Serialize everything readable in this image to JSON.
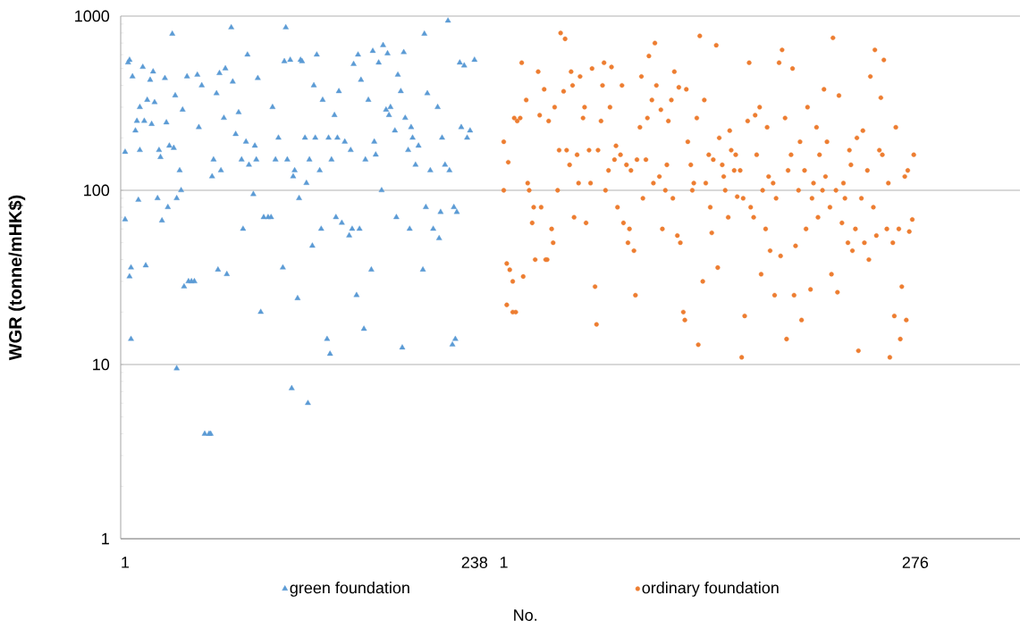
{
  "chart_data": {
    "type": "scatter",
    "xlabel": "No.",
    "ylabel": "WGR (tonne/mHK$)",
    "xlim": [
      -2,
      608
    ],
    "x2lim": [
      -255,
      346
    ],
    "ylim": [
      1,
      1000
    ],
    "log": true,
    "grid": "y",
    "legend": "bottom",
    "xticks": [
      1,
      238
    ],
    "x2ticks": [
      1,
      276
    ],
    "yticks": [
      1,
      10,
      100,
      1000
    ],
    "series": [
      {
        "name": "green foundation",
        "color": "#5b9bd5",
        "marker": "triangle",
        "x": [
          1,
          1,
          3,
          4,
          4,
          5,
          5,
          6,
          8,
          9,
          10,
          11,
          11,
          13,
          14,
          15,
          16,
          18,
          19,
          20,
          21,
          23,
          24,
          25,
          26,
          28,
          29,
          30,
          31,
          33,
          34,
          35,
          36,
          36,
          38,
          39,
          40,
          41,
          43,
          44,
          46,
          48,
          50,
          51,
          53,
          55,
          58,
          59,
          60,
          61,
          63,
          64,
          65,
          66,
          68,
          69,
          70,
          73,
          74,
          76,
          78,
          80,
          81,
          83,
          84,
          85,
          88,
          89,
          90,
          91,
          93,
          95,
          98,
          100,
          101,
          103,
          105,
          108,
          109,
          110,
          111,
          113,
          114,
          115,
          116,
          118,
          119,
          120,
          121,
          123,
          124,
          125,
          126,
          128,
          129,
          130,
          131,
          133,
          134,
          135,
          138,
          139,
          140,
          141,
          143,
          144,
          145,
          146,
          148,
          150,
          153,
          154,
          155,
          156,
          158,
          159,
          160,
          161,
          163,
          164,
          166,
          168,
          169,
          170,
          171,
          173,
          175,
          176,
          178,
          179,
          180,
          181,
          184,
          185,
          186,
          188,
          189,
          190,
          191,
          193,
          194,
          195,
          196,
          198,
          200,
          203,
          204,
          205,
          206,
          208,
          210,
          213,
          214,
          215,
          216,
          218,
          220,
          221,
          223,
          224,
          225,
          226,
          228,
          229,
          231,
          233,
          235,
          238
        ],
        "values": [
          166,
          68,
          541,
          560,
          32,
          14,
          36,
          450,
          220,
          250,
          88,
          170,
          300,
          510,
          250,
          37,
          330,
          430,
          240,
          480,
          320,
          90,
          170,
          155,
          67,
          440,
          245,
          80,
          180,
          790,
          175,
          350,
          90,
          9.5,
          130,
          100,
          290,
          28,
          450,
          30,
          30,
          30,
          460,
          230,
          400,
          4,
          4,
          4,
          120,
          150,
          360,
          35,
          470,
          130,
          260,
          500,
          33,
          860,
          420,
          210,
          280,
          150,
          60,
          190,
          600,
          140,
          95,
          180,
          150,
          440,
          20,
          70,
          70,
          70,
          300,
          150,
          200,
          36,
          550,
          860,
          150,
          560,
          7.3,
          120,
          130,
          24,
          90,
          560,
          550,
          200,
          110,
          6,
          150,
          48,
          400,
          200,
          600,
          130,
          60,
          330,
          14,
          200,
          11.5,
          150,
          270,
          70,
          200,
          370,
          65,
          190,
          55,
          170,
          60,
          530,
          25,
          600,
          60,
          430,
          16,
          150,
          330,
          35,
          630,
          190,
          160,
          540,
          100,
          680,
          290,
          610,
          270,
          300,
          220,
          70,
          460,
          370,
          12.5,
          620,
          260,
          170,
          60,
          230,
          200,
          140,
          180,
          35,
          790,
          80,
          360,
          130,
          60,
          300,
          53,
          75,
          200,
          140,
          940,
          130,
          13,
          80,
          14,
          75,
          540,
          230,
          520,
          200,
          220,
          560
        ]
      },
      {
        "name": "ordinary foundation",
        "color": "#ed7d31",
        "marker": "circle",
        "axis": "x2",
        "x": [
          1,
          1,
          3,
          3,
          4,
          5,
          7,
          7,
          8,
          9,
          10,
          12,
          13,
          14,
          16,
          17,
          18,
          20,
          21,
          22,
          24,
          25,
          26,
          28,
          29,
          30,
          31,
          33,
          34,
          35,
          37,
          38,
          39,
          41,
          42,
          43,
          45,
          46,
          47,
          48,
          50,
          51,
          52,
          54,
          55,
          56,
          58,
          59,
          60,
          62,
          63,
          64,
          66,
          67,
          68,
          69,
          71,
          72,
          73,
          75,
          76,
          77,
          79,
          80,
          81,
          83,
          84,
          85,
          86,
          88,
          89,
          90,
          92,
          93,
          94,
          96,
          97,
          98,
          100,
          101,
          102,
          103,
          105,
          106,
          107,
          109,
          110,
          111,
          113,
          114,
          115,
          117,
          118,
          119,
          121,
          122,
          123,
          124,
          126,
          127,
          128,
          130,
          131,
          132,
          134,
          135,
          136,
          138,
          139,
          140,
          141,
          143,
          144,
          145,
          147,
          148,
          149,
          151,
          152,
          153,
          155,
          156,
          157,
          159,
          160,
          161,
          162,
          164,
          165,
          166,
          168,
          169,
          170,
          172,
          173,
          174,
          176,
          177,
          178,
          179,
          181,
          182,
          183,
          185,
          186,
          187,
          189,
          190,
          191,
          193,
          194,
          195,
          196,
          198,
          199,
          200,
          202,
          203,
          204,
          206,
          207,
          208,
          210,
          211,
          212,
          214,
          215,
          216,
          217,
          219,
          220,
          221,
          223,
          224,
          225,
          227,
          228,
          229,
          231,
          232,
          233,
          234,
          236,
          237,
          238,
          240,
          241,
          242,
          244,
          245,
          246,
          248,
          249,
          250,
          252,
          253,
          254,
          255,
          257,
          258,
          259,
          261,
          262,
          263,
          265,
          266,
          267,
          269,
          270,
          271,
          272,
          274,
          275
        ],
        "values": [
          190,
          100,
          38,
          22,
          145,
          35,
          30,
          20,
          260,
          20,
          250,
          260,
          540,
          32,
          330,
          110,
          100,
          65,
          80,
          40,
          480,
          270,
          80,
          380,
          40,
          40,
          250,
          60,
          50,
          300,
          100,
          170,
          800,
          370,
          740,
          170,
          140,
          480,
          400,
          70,
          160,
          110,
          450,
          260,
          300,
          65,
          170,
          110,
          500,
          28,
          17,
          170,
          250,
          400,
          540,
          100,
          130,
          300,
          510,
          150,
          180,
          80,
          160,
          400,
          65,
          140,
          50,
          60,
          130,
          45,
          25,
          150,
          230,
          450,
          90,
          150,
          260,
          590,
          330,
          110,
          700,
          400,
          120,
          290,
          60,
          100,
          140,
          250,
          330,
          90,
          480,
          55,
          390,
          50,
          20,
          18,
          380,
          190,
          140,
          100,
          110,
          260,
          13,
          770,
          30,
          330,
          110,
          160,
          80,
          57,
          150,
          680,
          36,
          200,
          140,
          120,
          100,
          70,
          220,
          170,
          130,
          160,
          92,
          130,
          11,
          90,
          19,
          250,
          540,
          80,
          70,
          270,
          160,
          300,
          33,
          100,
          60,
          230,
          120,
          45,
          110,
          25,
          90,
          540,
          42,
          640,
          260,
          14,
          130,
          160,
          500,
          25,
          48,
          100,
          190,
          18,
          130,
          60,
          300,
          27,
          90,
          110,
          230,
          70,
          160,
          100,
          380,
          120,
          190,
          80,
          33,
          750,
          100,
          26,
          350,
          65,
          110,
          90,
          50,
          170,
          140,
          45,
          60,
          200,
          12,
          90,
          220,
          50,
          130,
          40,
          450,
          80,
          640,
          55,
          170,
          340,
          160,
          560,
          60,
          110,
          11,
          50,
          19,
          230,
          60,
          14,
          28,
          120,
          18,
          130,
          58,
          68,
          160
        ]
      }
    ]
  }
}
